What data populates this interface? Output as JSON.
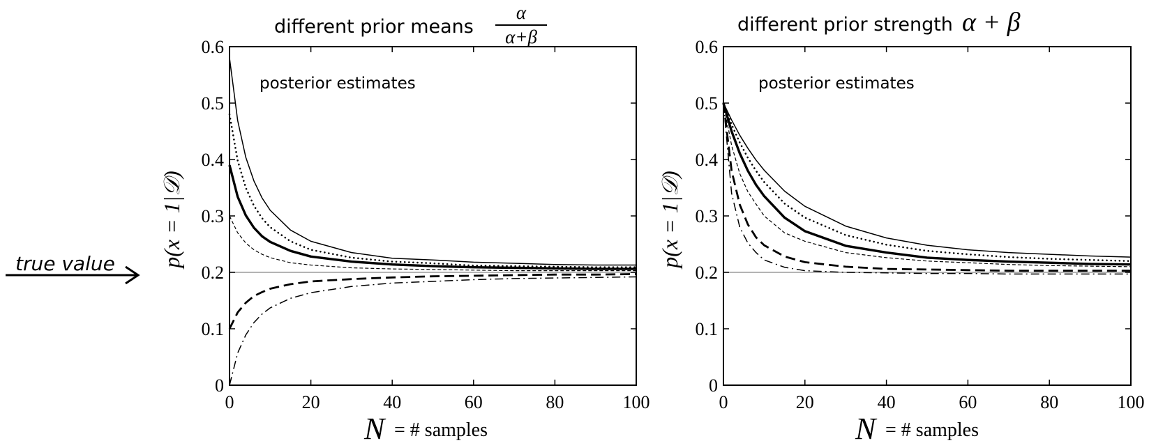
{
  "annotation": {
    "true_value_label": "true value"
  },
  "colors": {
    "ink": "#000000",
    "true_line": "#888888",
    "background": "#ffffff"
  },
  "chart_data": [
    {
      "type": "line",
      "title_text": "different prior means",
      "title_math": {
        "numerator": "α",
        "denominator": "α+β"
      },
      "ylabel": "p(x = 1|𝒟)",
      "xlabel_symbol": "N",
      "xlabel_text": "= # samples",
      "annotation": "posterior estimates",
      "xlim": [
        0,
        100
      ],
      "ylim": [
        0,
        0.6
      ],
      "xticks": [
        "0",
        "20",
        "40",
        "60",
        "80",
        "100"
      ],
      "yticks": [
        "0",
        "0.1",
        "0.2",
        "0.3",
        "0.4",
        "0.5",
        "0.6"
      ],
      "true_value": 0.2,
      "x": [
        0,
        2,
        4,
        6,
        8,
        10,
        15,
        20,
        30,
        40,
        50,
        60,
        70,
        80,
        90,
        100
      ],
      "series": [
        {
          "style": "thin-solid",
          "values": [
            0.58,
            0.469,
            0.404,
            0.362,
            0.332,
            0.31,
            0.275,
            0.255,
            0.235,
            0.225,
            0.222,
            0.218,
            0.216,
            0.214,
            0.213,
            0.213
          ]
        },
        {
          "style": "dotted",
          "values": [
            0.48,
            0.398,
            0.35,
            0.318,
            0.296,
            0.28,
            0.255,
            0.24,
            0.226,
            0.219,
            0.216,
            0.212,
            0.211,
            0.21,
            0.209,
            0.209
          ]
        },
        {
          "style": "thick-solid",
          "values": [
            0.39,
            0.334,
            0.301,
            0.279,
            0.264,
            0.254,
            0.238,
            0.228,
            0.219,
            0.214,
            0.211,
            0.209,
            0.208,
            0.207,
            0.206,
            0.206
          ]
        },
        {
          "style": "thin-dashed",
          "values": [
            0.3,
            0.27,
            0.252,
            0.24,
            0.232,
            0.226,
            0.217,
            0.213,
            0.208,
            0.206,
            0.205,
            0.204,
            0.203,
            0.203,
            0.203,
            0.203
          ]
        },
        {
          "style": "thick-dashed",
          "values": [
            0.1,
            0.129,
            0.146,
            0.158,
            0.165,
            0.171,
            0.179,
            0.184,
            0.188,
            0.191,
            0.193,
            0.194,
            0.195,
            0.196,
            0.196,
            0.197
          ]
        },
        {
          "style": "dash-dot",
          "values": [
            0.0,
            0.057,
            0.089,
            0.111,
            0.126,
            0.137,
            0.154,
            0.164,
            0.175,
            0.181,
            0.184,
            0.187,
            0.189,
            0.19,
            0.191,
            0.192
          ]
        }
      ]
    },
    {
      "type": "line",
      "title_text": "different prior strength",
      "title_math": {
        "expr": "α + β"
      },
      "ylabel": "p(x = 1|𝒟)",
      "xlabel_symbol": "N",
      "xlabel_text": "= # samples",
      "annotation": "posterior estimates",
      "xlim": [
        0,
        100
      ],
      "ylim": [
        0,
        0.6
      ],
      "xticks": [
        "0",
        "20",
        "40",
        "60",
        "80",
        "100"
      ],
      "yticks": [
        "0",
        "0.1",
        "0.2",
        "0.3",
        "0.4",
        "0.5",
        "0.6"
      ],
      "true_value": 0.2,
      "x": [
        0,
        2,
        4,
        6,
        8,
        10,
        15,
        20,
        30,
        40,
        50,
        60,
        70,
        80,
        90,
        100
      ],
      "series": [
        {
          "style": "thin-solid",
          "values": [
            0.5,
            0.47,
            0.443,
            0.42,
            0.399,
            0.381,
            0.344,
            0.317,
            0.282,
            0.261,
            0.248,
            0.24,
            0.235,
            0.232,
            0.229,
            0.227
          ]
        },
        {
          "style": "dotted",
          "values": [
            0.5,
            0.462,
            0.43,
            0.403,
            0.38,
            0.36,
            0.322,
            0.297,
            0.266,
            0.249,
            0.238,
            0.232,
            0.227,
            0.224,
            0.222,
            0.22
          ]
        },
        {
          "style": "thick-solid",
          "values": [
            0.5,
            0.45,
            0.411,
            0.38,
            0.355,
            0.335,
            0.297,
            0.273,
            0.247,
            0.235,
            0.226,
            0.222,
            0.219,
            0.217,
            0.215,
            0.214
          ]
        },
        {
          "style": "thin-dashed",
          "values": [
            0.5,
            0.425,
            0.375,
            0.343,
            0.321,
            0.3,
            0.27,
            0.255,
            0.235,
            0.226,
            0.22,
            0.217,
            0.214,
            0.212,
            0.211,
            0.21
          ]
        },
        {
          "style": "thick-dashed",
          "values": [
            0.5,
            0.38,
            0.32,
            0.285,
            0.262,
            0.248,
            0.228,
            0.218,
            0.21,
            0.206,
            0.205,
            0.204,
            0.203,
            0.203,
            0.203,
            0.203
          ]
        },
        {
          "style": "dash-dot",
          "values": [
            0.5,
            0.34,
            0.28,
            0.252,
            0.235,
            0.222,
            0.209,
            0.203,
            0.2,
            0.199,
            0.198,
            0.198,
            0.197,
            0.197,
            0.197,
            0.197
          ]
        }
      ]
    }
  ]
}
